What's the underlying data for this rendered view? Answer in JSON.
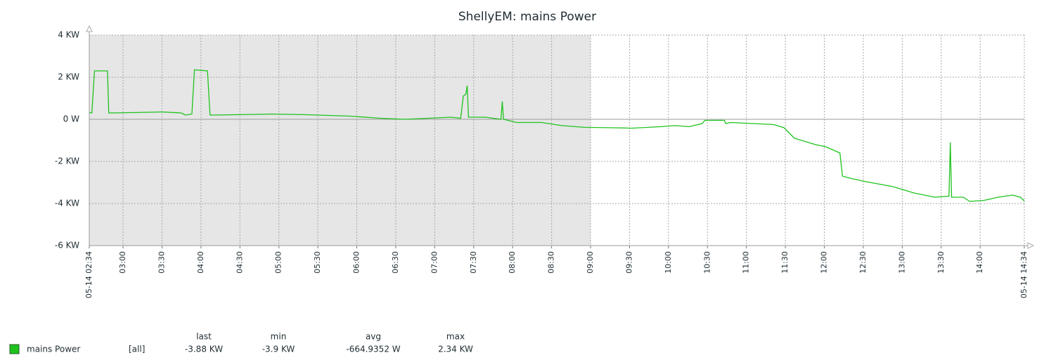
{
  "chart_data": {
    "type": "line",
    "title": "ShellyEM: mains Power",
    "x": [
      "02:34",
      "02:36",
      "02:38",
      "02:48",
      "02:49",
      "03:10",
      "03:30",
      "03:45",
      "03:48",
      "03:53",
      "03:55",
      "04:05",
      "04:07",
      "04:30",
      "04:55",
      "05:20",
      "05:55",
      "06:18",
      "06:37",
      "06:55",
      "07:12",
      "07:20",
      "07:22",
      "07:24",
      "07:25",
      "07:26",
      "07:39",
      "07:51",
      "07:52",
      "07:53",
      "08:03",
      "08:22",
      "08:38",
      "08:55",
      "09:16",
      "09:32",
      "09:54",
      "10:05",
      "10:16",
      "10:26",
      "10:28",
      "10:43",
      "10:44",
      "10:48",
      "11:04",
      "11:21",
      "11:29",
      "11:37",
      "11:53",
      "12:01",
      "12:12",
      "12:14",
      "12:20",
      "12:31",
      "12:53",
      "13:09",
      "13:25",
      "13:36",
      "13:37",
      "13:38",
      "13:47",
      "13:52",
      "14:03",
      "14:14",
      "14:25",
      "14:31",
      "14:34"
    ],
    "series": [
      {
        "name": "mains Power",
        "color": "#1ec31e",
        "values": [
          0.33,
          0.3,
          2.3,
          2.3,
          0.3,
          0.32,
          0.35,
          0.3,
          0.2,
          0.25,
          2.35,
          2.3,
          0.2,
          0.22,
          0.25,
          0.22,
          0.15,
          0.05,
          0.0,
          0.05,
          0.1,
          0.05,
          1.1,
          1.2,
          1.6,
          0.1,
          0.1,
          0.0,
          0.85,
          0.0,
          -0.15,
          -0.15,
          -0.3,
          -0.38,
          -0.4,
          -0.42,
          -0.35,
          -0.3,
          -0.35,
          -0.2,
          -0.05,
          -0.05,
          -0.2,
          -0.15,
          -0.2,
          -0.25,
          -0.4,
          -0.9,
          -1.2,
          -1.3,
          -1.6,
          -2.7,
          -2.8,
          -2.95,
          -3.2,
          -3.5,
          -3.7,
          -3.65,
          -1.1,
          -3.7,
          -3.7,
          -3.9,
          -3.85,
          -3.7,
          -3.6,
          -3.7,
          -3.88
        ]
      }
    ],
    "xlim": [
      "02:34",
      "14:34"
    ],
    "xticks": [
      {
        "value": "02:34",
        "label": "05-14 02:34"
      },
      "03:00",
      "03:30",
      "04:00",
      "04:30",
      "05:00",
      "05:30",
      "06:00",
      "06:30",
      "07:00",
      "07:30",
      "08:00",
      "08:30",
      "09:00",
      "09:30",
      "10:00",
      "10:30",
      "11:00",
      "11:30",
      "12:00",
      "12:30",
      "13:00",
      "13:30",
      "14:00",
      {
        "value": "14:34",
        "label": "05-14 14:34"
      }
    ],
    "ylim": [
      -6,
      4
    ],
    "yticks": [
      {
        "value": -6,
        "label": "-6 KW"
      },
      {
        "value": -4,
        "label": "-4 KW"
      },
      {
        "value": -2,
        "label": "-2 KW"
      },
      {
        "value": 0,
        "label": "0 W"
      },
      {
        "value": 2,
        "label": "2 KW"
      },
      {
        "value": 4,
        "label": "4 KW"
      }
    ],
    "grid": true,
    "shaded_xrange": [
      "02:34",
      "09:00"
    ],
    "legend_stats": {
      "function": "[all]",
      "headers": [
        "last",
        "min",
        "avg",
        "max"
      ],
      "values": [
        {
          "value": -3.88,
          "label": "-3.88 KW"
        },
        {
          "value": -3.9,
          "label": "-3.9 KW"
        },
        {
          "value": -0.6649352,
          "label": "-664.9352 W"
        },
        {
          "value": 2.34,
          "label": "2.34 KW"
        }
      ]
    }
  }
}
